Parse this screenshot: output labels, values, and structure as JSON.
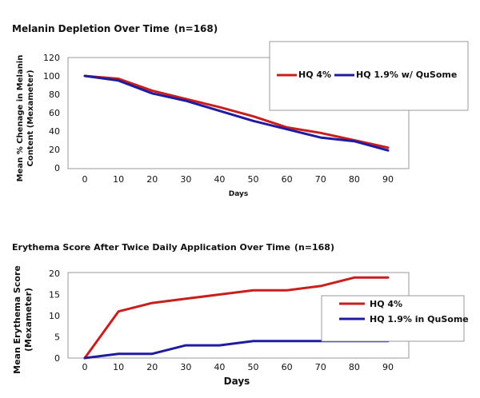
{
  "chart_data": [
    {
      "type": "line",
      "title": "Melanin Depletion Over Time",
      "title_n": "(n=168)",
      "xlabel": "Days",
      "ylabel": "Mean % Chenage in Melanin",
      "ylabel2": "Content (Mexameter)",
      "x": [
        0,
        10,
        20,
        30,
        40,
        50,
        60,
        70,
        80,
        90
      ],
      "xlim": [
        0,
        90
      ],
      "ylim": [
        0,
        120
      ],
      "yticks": [
        0,
        20,
        40,
        60,
        80,
        100,
        120
      ],
      "series": [
        {
          "name": "HQ 4%",
          "color": "#c81e1e",
          "values": [
            100,
            97,
            84,
            75,
            66,
            56,
            44,
            38,
            30,
            22
          ]
        },
        {
          "name": "HQ 1.9% w/ QuSome",
          "color": "#1f1ca0",
          "values": [
            100,
            95,
            81,
            73,
            62,
            51,
            42,
            33,
            29,
            19
          ]
        }
      ],
      "legend": "top-right"
    },
    {
      "type": "line",
      "title": "Erythema Score After Twice Daily Application Over Time",
      "title_n": "(n=168)",
      "xlabel": "Days",
      "ylabel": "Mean Erythema Score",
      "ylabel2": "(Mexameter)",
      "x": [
        0,
        10,
        20,
        30,
        40,
        50,
        60,
        70,
        80,
        90
      ],
      "xlim": [
        0,
        90
      ],
      "ylim": [
        0,
        20
      ],
      "yticks": [
        0,
        5,
        10,
        15,
        20
      ],
      "series": [
        {
          "name": "HQ 4%",
          "color": "#c81e1e",
          "values": [
            0,
            11,
            13,
            14,
            15,
            16,
            16,
            17,
            19,
            19
          ]
        },
        {
          "name": "HQ 1.9% in QuSome",
          "color": "#1f1ca0",
          "values": [
            0,
            1,
            1,
            3,
            3,
            4,
            4,
            4,
            4,
            4
          ]
        }
      ],
      "legend": "right"
    }
  ]
}
